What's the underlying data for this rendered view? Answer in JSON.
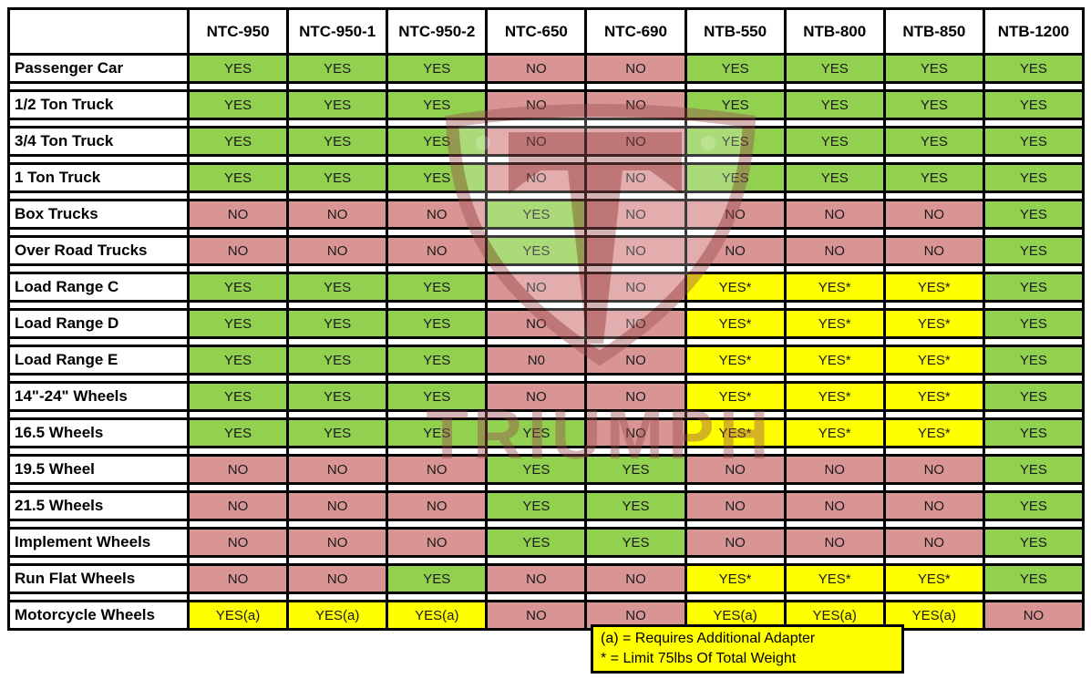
{
  "chart_data": {
    "type": "table",
    "columns": [
      "NTC-950",
      "NTC-950-1",
      "NTC-950-2",
      "NTC-650",
      "NTC-690",
      "NTB-550",
      "NTB-800",
      "NTB-850",
      "NTB-1200"
    ],
    "rows": [
      {
        "label": "Passenger Car",
        "values": [
          "YES",
          "YES",
          "YES",
          "NO",
          "NO",
          "YES",
          "YES",
          "YES",
          "YES"
        ]
      },
      {
        "label": "1/2 Ton Truck",
        "values": [
          "YES",
          "YES",
          "YES",
          "NO",
          "NO",
          "YES",
          "YES",
          "YES",
          "YES"
        ]
      },
      {
        "label": "3/4 Ton Truck",
        "values": [
          "YES",
          "YES",
          "YES",
          "NO",
          "NO",
          "YES",
          "YES",
          "YES",
          "YES"
        ]
      },
      {
        "label": "1 Ton Truck",
        "values": [
          "YES",
          "YES",
          "YES",
          "NO",
          "NO",
          "YES",
          "YES",
          "YES",
          "YES"
        ]
      },
      {
        "label": "Box Trucks",
        "values": [
          "NO",
          "NO",
          "NO",
          "YES",
          "NO",
          "NO",
          "NO",
          "NO",
          "YES"
        ]
      },
      {
        "label": "Over Road Trucks",
        "values": [
          "NO",
          "NO",
          "NO",
          "YES",
          "NO",
          "NO",
          "NO",
          "NO",
          "YES"
        ]
      },
      {
        "label": "Load Range C",
        "values": [
          "YES",
          "YES",
          "YES",
          "NO",
          "NO",
          "YES*",
          "YES*",
          "YES*",
          "YES"
        ]
      },
      {
        "label": "Load Range D",
        "values": [
          "YES",
          "YES",
          "YES",
          "NO",
          "NO",
          "YES*",
          "YES*",
          "YES*",
          "YES"
        ]
      },
      {
        "label": "Load Range E",
        "values": [
          "YES",
          "YES",
          "YES",
          "N0",
          "NO",
          "YES*",
          "YES*",
          "YES*",
          "YES"
        ]
      },
      {
        "label": "14\"-24\" Wheels",
        "values": [
          "YES",
          "YES",
          "YES",
          "NO",
          "NO",
          "YES*",
          "YES*",
          "YES*",
          "YES"
        ]
      },
      {
        "label": "16.5 Wheels",
        "values": [
          "YES",
          "YES",
          "YES",
          "YES",
          "NO",
          "YES*",
          "YES*",
          "YES*",
          "YES"
        ]
      },
      {
        "label": "19.5 Wheel",
        "values": [
          "NO",
          "NO",
          "NO",
          "YES",
          "YES",
          "NO",
          "NO",
          "NO",
          "YES"
        ]
      },
      {
        "label": "21.5 Wheels",
        "values": [
          "NO",
          "NO",
          "NO",
          "YES",
          "YES",
          "NO",
          "NO",
          "NO",
          "YES"
        ]
      },
      {
        "label": "Implement Wheels",
        "values": [
          "NO",
          "NO",
          "NO",
          "YES",
          "YES",
          "NO",
          "NO",
          "NO",
          "YES"
        ]
      },
      {
        "label": "Run Flat Wheels",
        "values": [
          "NO",
          "NO",
          "YES",
          "NO",
          "NO",
          "YES*",
          "YES*",
          "YES*",
          "YES"
        ]
      },
      {
        "label": "Motorcycle Wheels",
        "values": [
          "YES(a)",
          "YES(a)",
          "YES(a)",
          "NO",
          "NO",
          "YES(a)",
          "YES(a)",
          "YES(a)",
          "NO"
        ]
      }
    ],
    "footnotes": [
      "(a) = Requires Additional Adapter",
      "* = Limit 75lbs Of Total Weight"
    ],
    "watermark": "TRIUMPH",
    "colors": {
      "yes": "#92D050",
      "no": "#D99594",
      "note": "#FFFF00"
    },
    "legend_position": "bottom",
    "grid": true,
    "title": ""
  }
}
